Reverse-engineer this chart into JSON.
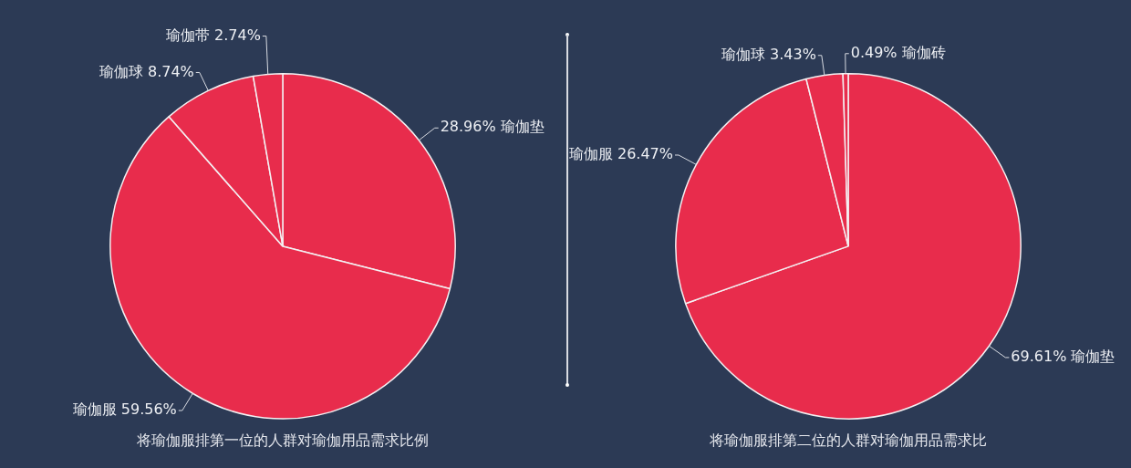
{
  "chart_data": [
    {
      "type": "pie",
      "title": "将瑜伽服排第一位的人群对瑜伽用品需求比例",
      "categories": [
        "瑜伽垫",
        "瑜伽服",
        "瑜伽球",
        "瑜伽带"
      ],
      "values": [
        28.96,
        59.56,
        8.74,
        2.74
      ],
      "value_labels": [
        "28.96%",
        "59.56%",
        "8.74%",
        "2.74%"
      ],
      "colors": [
        "#e82c4c",
        "#e82c4c",
        "#e82c4c",
        "#e82c4c"
      ],
      "legend": false
    },
    {
      "type": "pie",
      "title": "将瑜伽服排第二位的人群对瑜伽用品需求比",
      "categories": [
        "瑜伽垫",
        "瑜伽服",
        "瑜伽球",
        "瑜伽砖"
      ],
      "values": [
        69.61,
        26.47,
        3.43,
        0.49
      ],
      "value_labels": [
        "69.61%",
        "26.47%",
        "3.43%",
        "0.49%"
      ],
      "colors": [
        "#e82c4c",
        "#e82c4c",
        "#e82c4c",
        "#e82c4c"
      ],
      "legend": false
    }
  ]
}
